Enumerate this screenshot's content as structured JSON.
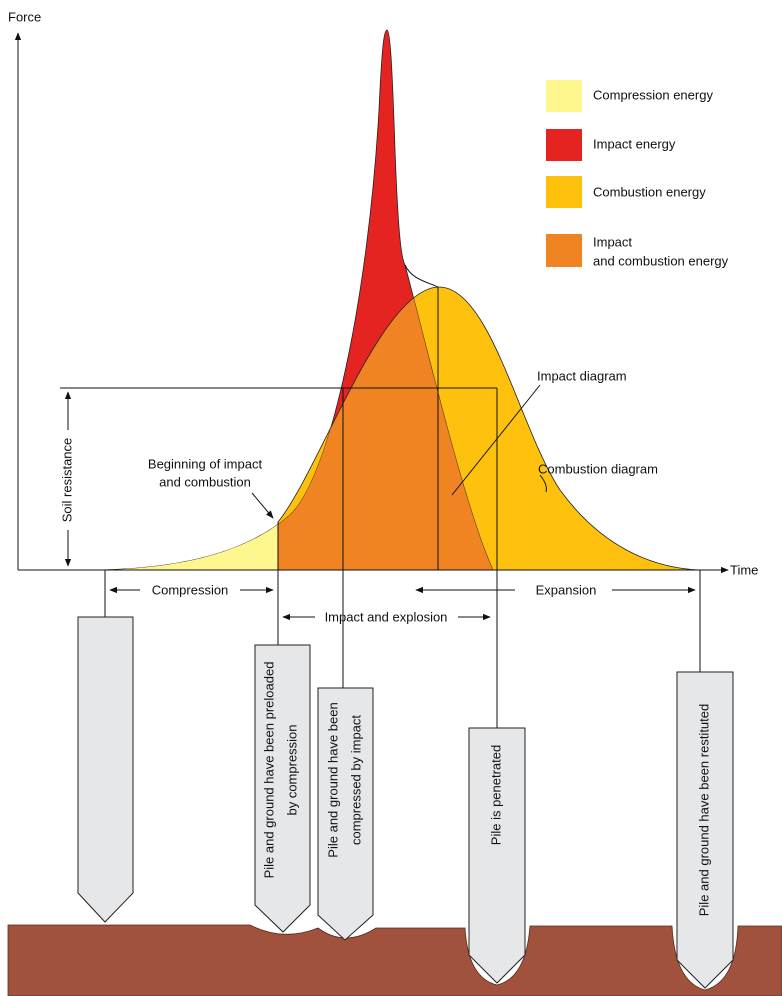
{
  "axes": {
    "y_label": "Force",
    "x_label": "Time"
  },
  "legend": [
    {
      "lines": [
        "Compression energy"
      ]
    },
    {
      "lines": [
        "Impact energy"
      ]
    },
    {
      "lines": [
        "Combustion energy"
      ]
    },
    {
      "lines": [
        "Impact",
        "and combustion energy"
      ]
    }
  ],
  "annotations": {
    "soil_resistance": "Soil resistance",
    "beginning": [
      "Beginning of impact",
      "and combustion"
    ],
    "impact_diagram": "Impact diagram",
    "combustion_diagram": "Combustion diagram"
  },
  "phases": [
    "Compression",
    "Impact and explosion",
    "Expansion"
  ],
  "piles": [
    {
      "lines": [
        "Pile and ground have been preloaded",
        "by compression"
      ]
    },
    {
      "lines": [
        "Pile and ground have been",
        "compressed by impact"
      ]
    },
    {
      "lines": [
        "Pile is penetrated"
      ]
    },
    {
      "lines": [
        "Pile and ground have been restituted"
      ]
    }
  ]
}
